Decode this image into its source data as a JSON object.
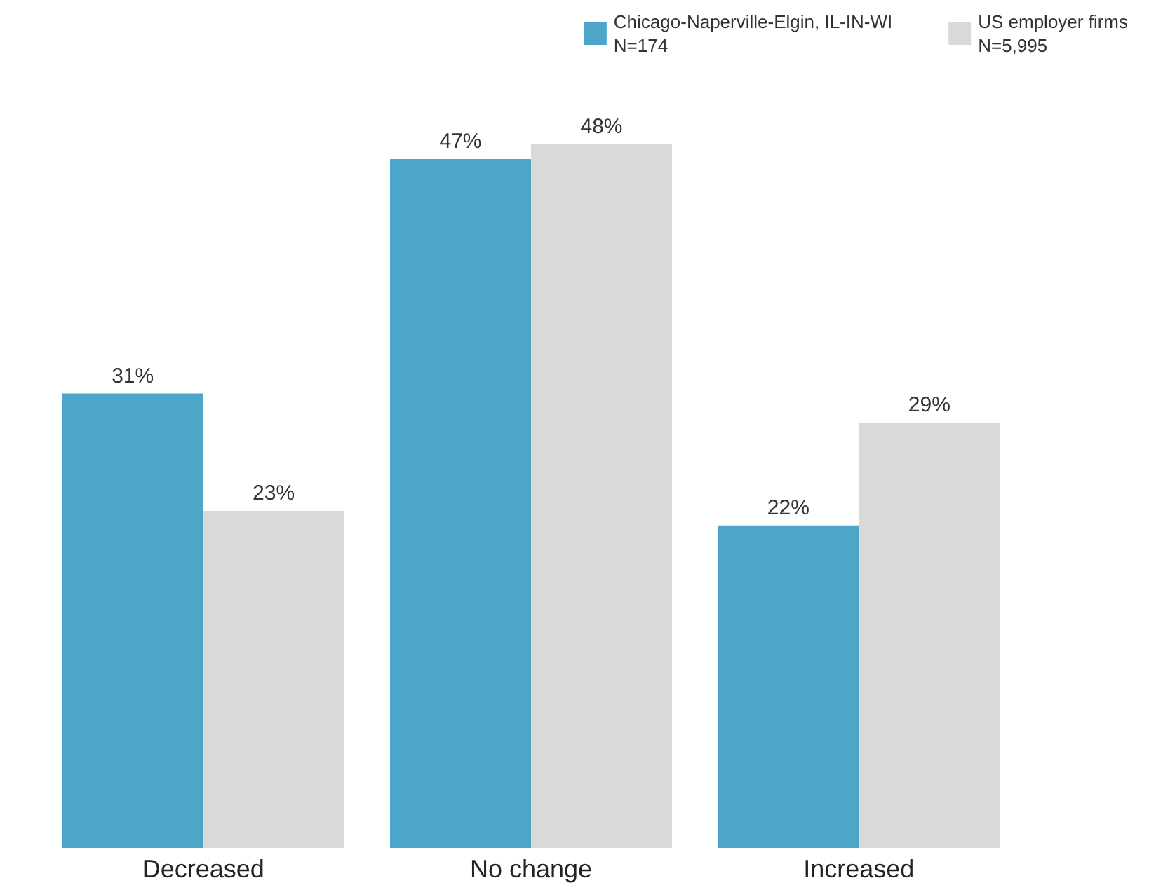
{
  "chart_data": {
    "type": "bar",
    "categories": [
      "Decreased",
      "No change",
      "Increased"
    ],
    "series": [
      {
        "name": "Chicago-Naperville-Elgin, IL-IN-WI\nN=174",
        "color": "#4ba6c9",
        "values": [
          31,
          47,
          22
        ],
        "value_labels": [
          "31%",
          "47%",
          "22%"
        ]
      },
      {
        "name": "US employer firms\nN=5,995",
        "color": "#d9d9d9",
        "values": [
          23,
          48,
          29
        ],
        "value_labels": [
          "23%",
          "48%",
          "29%"
        ]
      }
    ],
    "legend": "top right"
  }
}
